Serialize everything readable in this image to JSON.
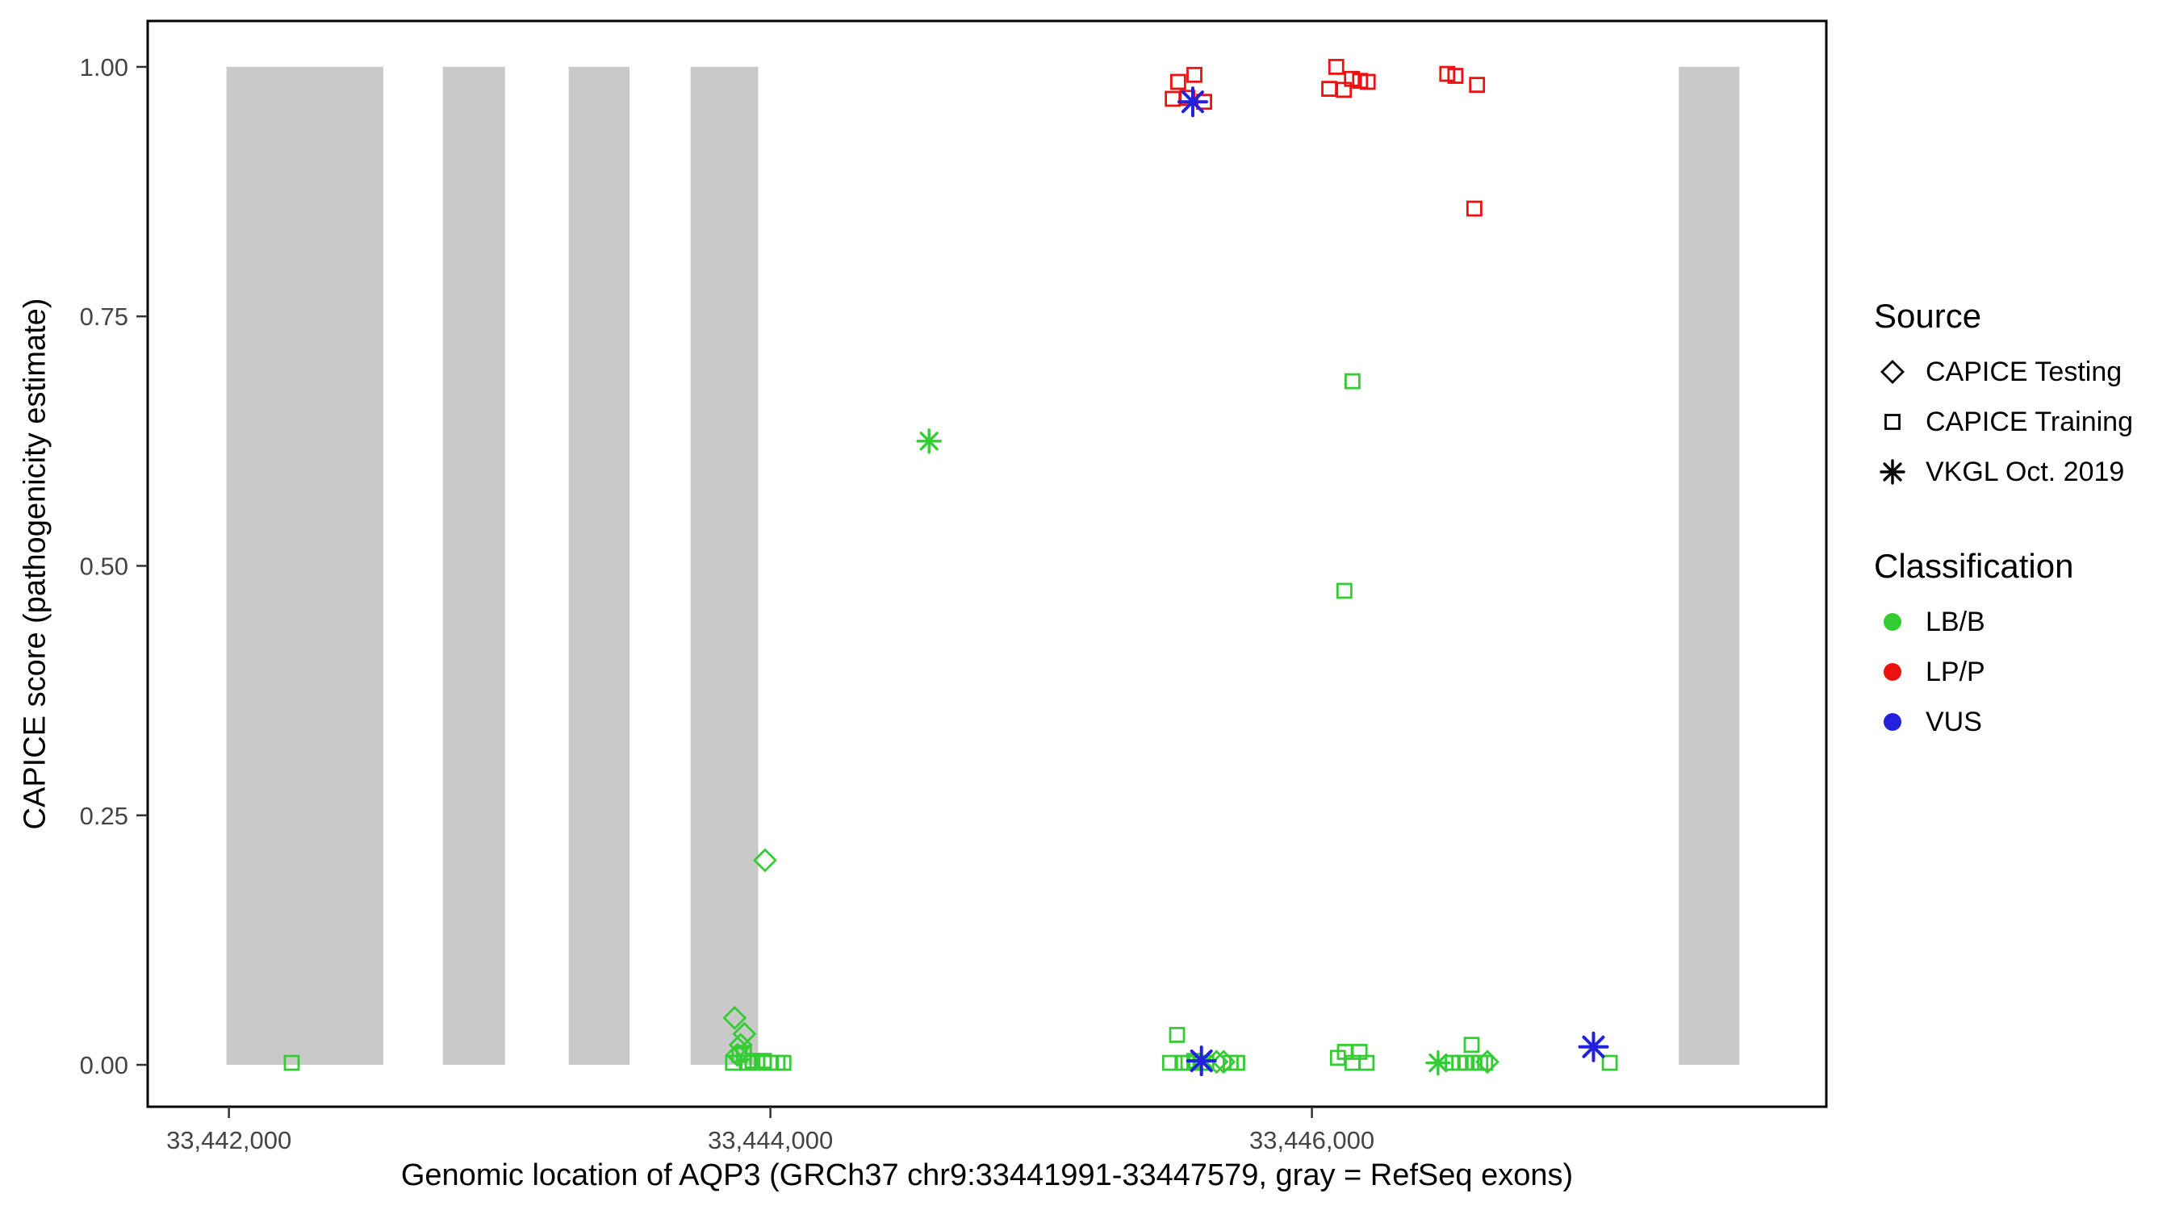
{
  "figure": {
    "background": "#ffffff"
  },
  "chart_data": {
    "type": "scatter",
    "title": "",
    "xlabel": "Genomic location of AQP3 (GRCh37 chr9:33441991-33447579, gray = RefSeq exons)",
    "ylabel": "CAPICE score (pathogenicity estimate)",
    "xlim": [
      33441700,
      33447900
    ],
    "ylim": [
      -0.042,
      1.046
    ],
    "grid": false,
    "x_ticks": [
      {
        "value": 33442000,
        "label": "33,442,000"
      },
      {
        "value": 33444000,
        "label": "33,444,000"
      },
      {
        "value": 33446000,
        "label": "33,446,000"
      }
    ],
    "y_ticks": [
      {
        "value": 0.0,
        "label": "0.00"
      },
      {
        "value": 0.25,
        "label": "0.25"
      },
      {
        "value": 0.5,
        "label": "0.50"
      },
      {
        "value": 0.75,
        "label": "0.75"
      },
      {
        "value": 1.0,
        "label": "1.00"
      }
    ],
    "exon_color": "#c9c9c9",
    "exon_y_range": [
      0,
      1
    ],
    "exons": [
      {
        "start": 33441991,
        "end": 33442570
      },
      {
        "start": 33442790,
        "end": 33443020
      },
      {
        "start": 33443255,
        "end": 33443480
      },
      {
        "start": 33443705,
        "end": 33443955
      },
      {
        "start": 33447355,
        "end": 33447579
      }
    ],
    "series_colors": {
      "LB/B": "#33cc33",
      "LP/P": "#ee1111",
      "VUS": "#2222dd"
    },
    "marker_by_source": {
      "testing": "diamond",
      "training": "square",
      "vkgl": "asterisk"
    },
    "points": [
      {
        "x": 33442232,
        "y": 0.002,
        "s": "training",
        "c": "LB/B"
      },
      {
        "x": 33443862,
        "y": 0.002,
        "s": "training",
        "c": "LB/B"
      },
      {
        "x": 33443886,
        "y": 0.01,
        "s": "training",
        "c": "LB/B"
      },
      {
        "x": 33443902,
        "y": 0.012,
        "s": "training",
        "c": "LB/B"
      },
      {
        "x": 33443918,
        "y": 0.002,
        "s": "training",
        "c": "LB/B"
      },
      {
        "x": 33443934,
        "y": 0.004,
        "s": "training",
        "c": "LB/B"
      },
      {
        "x": 33443952,
        "y": 0.002,
        "s": "training",
        "c": "LB/B"
      },
      {
        "x": 33443976,
        "y": 0.004,
        "s": "training",
        "c": "LB/B"
      },
      {
        "x": 33444002,
        "y": 0.002,
        "s": "training",
        "c": "LB/B"
      },
      {
        "x": 33444026,
        "y": 0.002,
        "s": "training",
        "c": "LB/B"
      },
      {
        "x": 33444048,
        "y": 0.002,
        "s": "training",
        "c": "LB/B"
      },
      {
        "x": 33443868,
        "y": 0.047,
        "s": "testing",
        "c": "LB/B"
      },
      {
        "x": 33443904,
        "y": 0.031,
        "s": "testing",
        "c": "LB/B"
      },
      {
        "x": 33443890,
        "y": 0.02,
        "s": "testing",
        "c": "LB/B"
      },
      {
        "x": 33443878,
        "y": 0.01,
        "s": "testing",
        "c": "LB/B"
      },
      {
        "x": 33443980,
        "y": 0.205,
        "s": "testing",
        "c": "LB/B"
      },
      {
        "x": 33444586,
        "y": 0.625,
        "s": "vkgl",
        "c": "LB/B"
      },
      {
        "x": 33445476,
        "y": 0.002,
        "s": "training",
        "c": "LB/B"
      },
      {
        "x": 33445502,
        "y": 0.03,
        "s": "training",
        "c": "LB/B"
      },
      {
        "x": 33445522,
        "y": 0.002,
        "s": "training",
        "c": "LB/B"
      },
      {
        "x": 33445544,
        "y": 0.002,
        "s": "training",
        "c": "LB/B"
      },
      {
        "x": 33445566,
        "y": 0.004,
        "s": "training",
        "c": "LB/B"
      },
      {
        "x": 33445588,
        "y": 0.002,
        "s": "training",
        "c": "LB/B"
      },
      {
        "x": 33445610,
        "y": 0.002,
        "s": "training",
        "c": "LB/B"
      },
      {
        "x": 33445700,
        "y": 0.002,
        "s": "training",
        "c": "LB/B"
      },
      {
        "x": 33445724,
        "y": 0.002,
        "s": "training",
        "c": "LB/B"
      },
      {
        "x": 33445648,
        "y": 0.003,
        "s": "testing",
        "c": "LB/B"
      },
      {
        "x": 33445674,
        "y": 0.003,
        "s": "testing",
        "c": "LB/B"
      },
      {
        "x": 33445592,
        "y": 0.004,
        "s": "vkgl",
        "c": "VUS"
      },
      {
        "x": 33445486,
        "y": 0.968,
        "s": "training",
        "c": "LP/P"
      },
      {
        "x": 33445506,
        "y": 0.985,
        "s": "training",
        "c": "LP/P"
      },
      {
        "x": 33445540,
        "y": 0.969,
        "s": "training",
        "c": "LP/P"
      },
      {
        "x": 33445566,
        "y": 0.992,
        "s": "training",
        "c": "LP/P"
      },
      {
        "x": 33445602,
        "y": 0.965,
        "s": "training",
        "c": "LP/P"
      },
      {
        "x": 33445560,
        "y": 0.965,
        "s": "vkgl",
        "c": "VUS"
      },
      {
        "x": 33446064,
        "y": 0.978,
        "s": "training",
        "c": "LP/P"
      },
      {
        "x": 33446090,
        "y": 1.0,
        "s": "training",
        "c": "LP/P"
      },
      {
        "x": 33446118,
        "y": 0.977,
        "s": "training",
        "c": "LP/P"
      },
      {
        "x": 33446148,
        "y": 0.988,
        "s": "training",
        "c": "LP/P"
      },
      {
        "x": 33446178,
        "y": 0.986,
        "s": "training",
        "c": "LP/P"
      },
      {
        "x": 33446206,
        "y": 0.985,
        "s": "training",
        "c": "LP/P"
      },
      {
        "x": 33446150,
        "y": 0.685,
        "s": "training",
        "c": "LB/B"
      },
      {
        "x": 33446120,
        "y": 0.475,
        "s": "training",
        "c": "LB/B"
      },
      {
        "x": 33446096,
        "y": 0.007,
        "s": "training",
        "c": "LB/B"
      },
      {
        "x": 33446122,
        "y": 0.013,
        "s": "training",
        "c": "LB/B"
      },
      {
        "x": 33446150,
        "y": 0.002,
        "s": "training",
        "c": "LB/B"
      },
      {
        "x": 33446176,
        "y": 0.013,
        "s": "training",
        "c": "LB/B"
      },
      {
        "x": 33446202,
        "y": 0.002,
        "s": "training",
        "c": "LB/B"
      },
      {
        "x": 33446466,
        "y": 0.002,
        "s": "vkgl",
        "c": "LB/B"
      },
      {
        "x": 33446520,
        "y": 0.002,
        "s": "training",
        "c": "LB/B"
      },
      {
        "x": 33446544,
        "y": 0.002,
        "s": "training",
        "c": "LB/B"
      },
      {
        "x": 33446566,
        "y": 0.002,
        "s": "training",
        "c": "LB/B"
      },
      {
        "x": 33446590,
        "y": 0.02,
        "s": "training",
        "c": "LB/B"
      },
      {
        "x": 33446600,
        "y": 0.002,
        "s": "training",
        "c": "LB/B"
      },
      {
        "x": 33446622,
        "y": 0.002,
        "s": "training",
        "c": "LB/B"
      },
      {
        "x": 33446640,
        "y": 0.002,
        "s": "training",
        "c": "LB/B"
      },
      {
        "x": 33446648,
        "y": 0.003,
        "s": "testing",
        "c": "LB/B"
      },
      {
        "x": 33446500,
        "y": 0.993,
        "s": "training",
        "c": "LP/P"
      },
      {
        "x": 33446530,
        "y": 0.991,
        "s": "training",
        "c": "LP/P"
      },
      {
        "x": 33446610,
        "y": 0.982,
        "s": "training",
        "c": "LP/P"
      },
      {
        "x": 33446600,
        "y": 0.858,
        "s": "training",
        "c": "LP/P"
      },
      {
        "x": 33447040,
        "y": 0.018,
        "s": "vkgl",
        "c": "VUS"
      },
      {
        "x": 33447100,
        "y": 0.002,
        "s": "training",
        "c": "LB/B"
      }
    ]
  },
  "legend": {
    "source_title": "Source",
    "source_items": [
      {
        "label": "CAPICE Testing",
        "marker": "diamond"
      },
      {
        "label": "CAPICE Training",
        "marker": "square"
      },
      {
        "label": "VKGL Oct. 2019",
        "marker": "asterisk"
      }
    ],
    "class_title": "Classification",
    "class_items": [
      {
        "label": "LB/B",
        "color": "#33cc33"
      },
      {
        "label": "LP/P",
        "color": "#ee1111"
      },
      {
        "label": "VUS",
        "color": "#2222dd"
      }
    ]
  }
}
